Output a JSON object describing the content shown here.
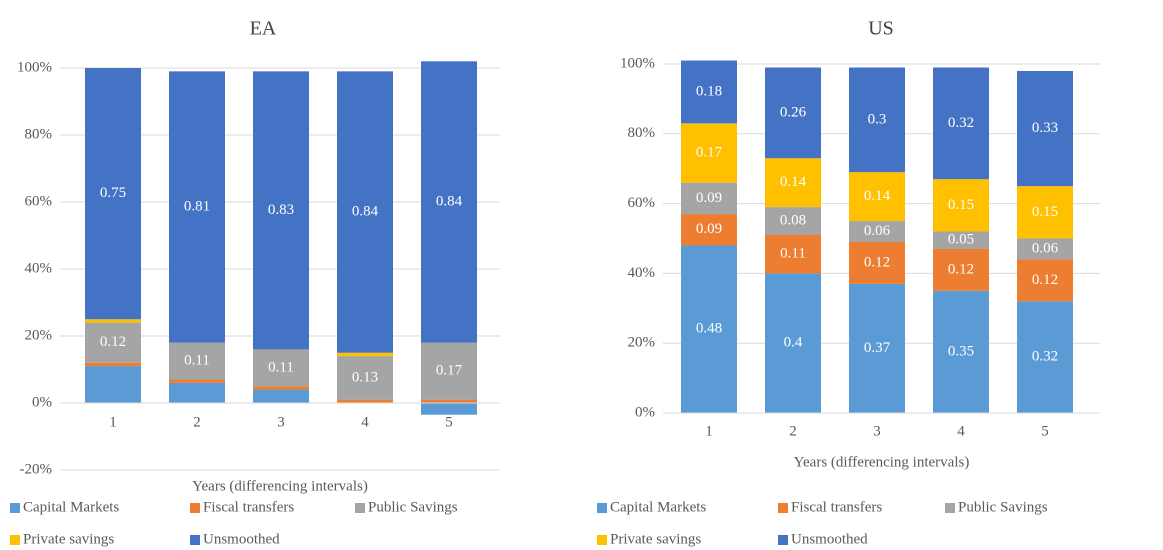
{
  "chart_data": [
    {
      "type": "stacked_bar",
      "title": "EA",
      "x_label": "Years (differencing intervals)",
      "categories": [
        "1",
        "2",
        "3",
        "4",
        "5"
      ],
      "ylim": [
        -20,
        100
      ],
      "yticks": [
        {
          "value": -20,
          "label": "-20%"
        },
        {
          "value": 0,
          "label": "0%"
        },
        {
          "value": 20,
          "label": "20%"
        },
        {
          "value": 40,
          "label": "40%"
        },
        {
          "value": 60,
          "label": "60%"
        },
        {
          "value": 80,
          "label": "80%"
        },
        {
          "value": 100,
          "label": "100%"
        }
      ],
      "series": [
        {
          "name": "Capital Markets",
          "color": "#5b9bd5",
          "values": [
            11,
            6,
            4,
            0,
            -3.5
          ],
          "value_labels": [
            null,
            null,
            null,
            null,
            null
          ]
        },
        {
          "name": "Fiscal transfers",
          "color": "#ed7d31",
          "values": [
            1,
            1,
            1,
            1,
            1
          ],
          "value_labels": [
            null,
            null,
            null,
            null,
            null
          ]
        },
        {
          "name": "Public Savings",
          "color": "#a5a5a5",
          "values": [
            12,
            11,
            11,
            13,
            17
          ],
          "value_labels": [
            "0.12",
            "0.11",
            "0.11",
            "0.13",
            "0.17"
          ]
        },
        {
          "name": "Private savings",
          "color": "#ffc000",
          "values": [
            1,
            0,
            0,
            1,
            0
          ],
          "value_labels": [
            null,
            null,
            null,
            null,
            null
          ]
        },
        {
          "name": "Unsmoothed",
          "color": "#4472c4",
          "values": [
            75,
            81,
            83,
            84,
            84
          ],
          "value_labels": [
            "0.75",
            "0.81",
            "0.83",
            "0.84",
            "0.84"
          ]
        }
      ]
    },
    {
      "type": "stacked_bar",
      "title": "US",
      "x_label": "Years (differencing intervals)",
      "categories": [
        "1",
        "2",
        "3",
        "4",
        "5"
      ],
      "ylim": [
        0,
        100
      ],
      "yticks": [
        {
          "value": 0,
          "label": "0%"
        },
        {
          "value": 20,
          "label": "20%"
        },
        {
          "value": 40,
          "label": "40%"
        },
        {
          "value": 60,
          "label": "60%"
        },
        {
          "value": 80,
          "label": "80%"
        },
        {
          "value": 100,
          "label": "100%"
        }
      ],
      "series": [
        {
          "name": "Capital Markets",
          "color": "#5b9bd5",
          "values": [
            48,
            40,
            37,
            35,
            32
          ],
          "value_labels": [
            "0.48",
            "0.4",
            "0.37",
            "0.35",
            "0.32"
          ]
        },
        {
          "name": "Fiscal transfers",
          "color": "#ed7d31",
          "values": [
            9,
            11,
            12,
            12,
            12
          ],
          "value_labels": [
            "0.09",
            "0.11",
            "0.12",
            "0.12",
            "0.12"
          ]
        },
        {
          "name": "Public Savings",
          "color": "#a5a5a5",
          "values": [
            9,
            8,
            6,
            5,
            6
          ],
          "value_labels": [
            "0.09",
            "0.08",
            "0.06",
            "0.05",
            "0.06"
          ]
        },
        {
          "name": "Private savings",
          "color": "#ffc000",
          "values": [
            17,
            14,
            14,
            15,
            15
          ],
          "value_labels": [
            "0.17",
            "0.14",
            "0.14",
            "0.15",
            "0.15"
          ]
        },
        {
          "name": "Unsmoothed",
          "color": "#4472c4",
          "values": [
            18,
            26,
            30,
            32,
            33
          ],
          "value_labels": [
            "0.18",
            "0.26",
            "0.3",
            "0.32",
            "0.33"
          ]
        }
      ]
    }
  ]
}
